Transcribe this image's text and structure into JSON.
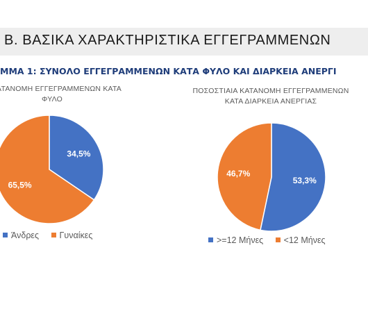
{
  "header": {
    "section_title": "Β.  ΒΑΣΙΚΑ ΧΑΡΑΚΤΗΡΙΣΤΙΚΑ ΕΓΓΕΓΡΑΜΜΕΝΩΝ",
    "caption": "ΜΜΑ 1: ΣΥΝΟΛΟ ΕΓΓΕΓΡΑΜΜΕΝΩΝ ΚΑΤΑ ΦΥΛΟ ΚΑΙ ΔΙΑΡΚΕΙΑ ΑΝΕΡΓΙ"
  },
  "colors": {
    "blue": "#4472C4",
    "orange": "#ED7D31"
  },
  "chart_data": [
    {
      "type": "pie",
      "title_lines": [
        "ΙΑ ΚΑΤΑΝΟΜΗ ΕΓΓΕΓΡΑΜΜΕΝΩΝ ΚΑΤΑ",
        "ΦΥΛΟ"
      ],
      "slices": [
        {
          "label": "Άνδρες",
          "value": 34.5,
          "display": "34,5%",
          "color": "#4472C4"
        },
        {
          "label": "Γυναίκες",
          "value": 65.5,
          "display": "65,5%",
          "color": "#ED7D31"
        }
      ],
      "legend": "bottom"
    },
    {
      "type": "pie",
      "title_lines": [
        "ΠΟΣΟΣΤΙΑΙΑ ΚΑΤΑΝΟΜΗ ΕΓΓΕΓΡΑΜΜΕΝΩΝ",
        "ΚΑΤΑ ΔΙΑΡΚΕΙΑ ΑΝΕΡΓΙΑΣ"
      ],
      "slices": [
        {
          "label": ">=12 Μήνες",
          "value": 53.3,
          "display": "53,3%",
          "color": "#4472C4"
        },
        {
          "label": "<12 Μήνες",
          "value": 46.7,
          "display": "46,7%",
          "color": "#ED7D31"
        }
      ],
      "legend": "bottom"
    }
  ]
}
